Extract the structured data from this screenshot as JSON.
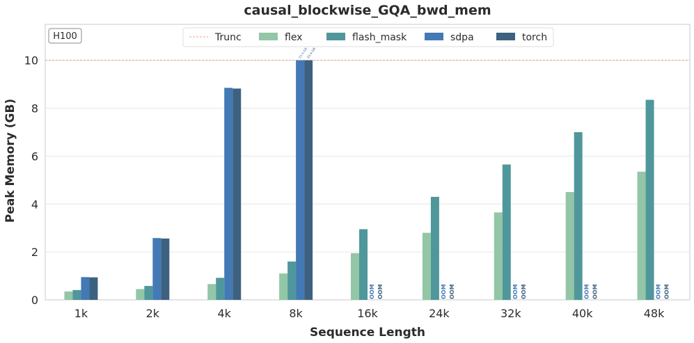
{
  "chart_data": {
    "type": "bar",
    "title": "causal_blockwise_GQA_bwd_mem",
    "xlabel": "Sequence Length",
    "ylabel": "Peak Memory (GB)",
    "ylim": [
      0,
      11.5
    ],
    "yticks": [
      0,
      2,
      4,
      6,
      8,
      10
    ],
    "grid": true,
    "badge": "H100",
    "legend_position": "top-center",
    "truncation": {
      "name": "Trunc",
      "value": 10,
      "color": "#e8a090"
    },
    "categories": [
      "1k",
      "2k",
      "4k",
      "8k",
      "16k",
      "24k",
      "32k",
      "40k",
      "48k"
    ],
    "series": [
      {
        "name": "flex",
        "color": "#93c6a6",
        "values": [
          0.35,
          0.45,
          0.66,
          1.1,
          1.95,
          2.8,
          3.65,
          4.5,
          5.35
        ]
      },
      {
        "name": "flash_mask",
        "color": "#4f979b",
        "values": [
          0.41,
          0.58,
          0.92,
          1.6,
          2.95,
          4.3,
          5.65,
          7.0,
          8.35
        ]
      },
      {
        "name": "sdpa",
        "color": "#4379b4",
        "values": [
          0.95,
          2.58,
          8.85,
          10,
          null,
          null,
          null,
          null,
          null
        ]
      },
      {
        "name": "torch",
        "color": "#3d6180",
        "values": [
          0.94,
          2.56,
          8.82,
          10,
          null,
          null,
          null,
          null,
          null
        ]
      }
    ],
    "annotations": {
      "oom_label": "OOM",
      "truncated_labels": [
        {
          "series": "sdpa",
          "category": "8k",
          "text": "33.4 GB"
        },
        {
          "series": "torch",
          "category": "8k",
          "text": "33.4 GB"
        }
      ]
    }
  }
}
